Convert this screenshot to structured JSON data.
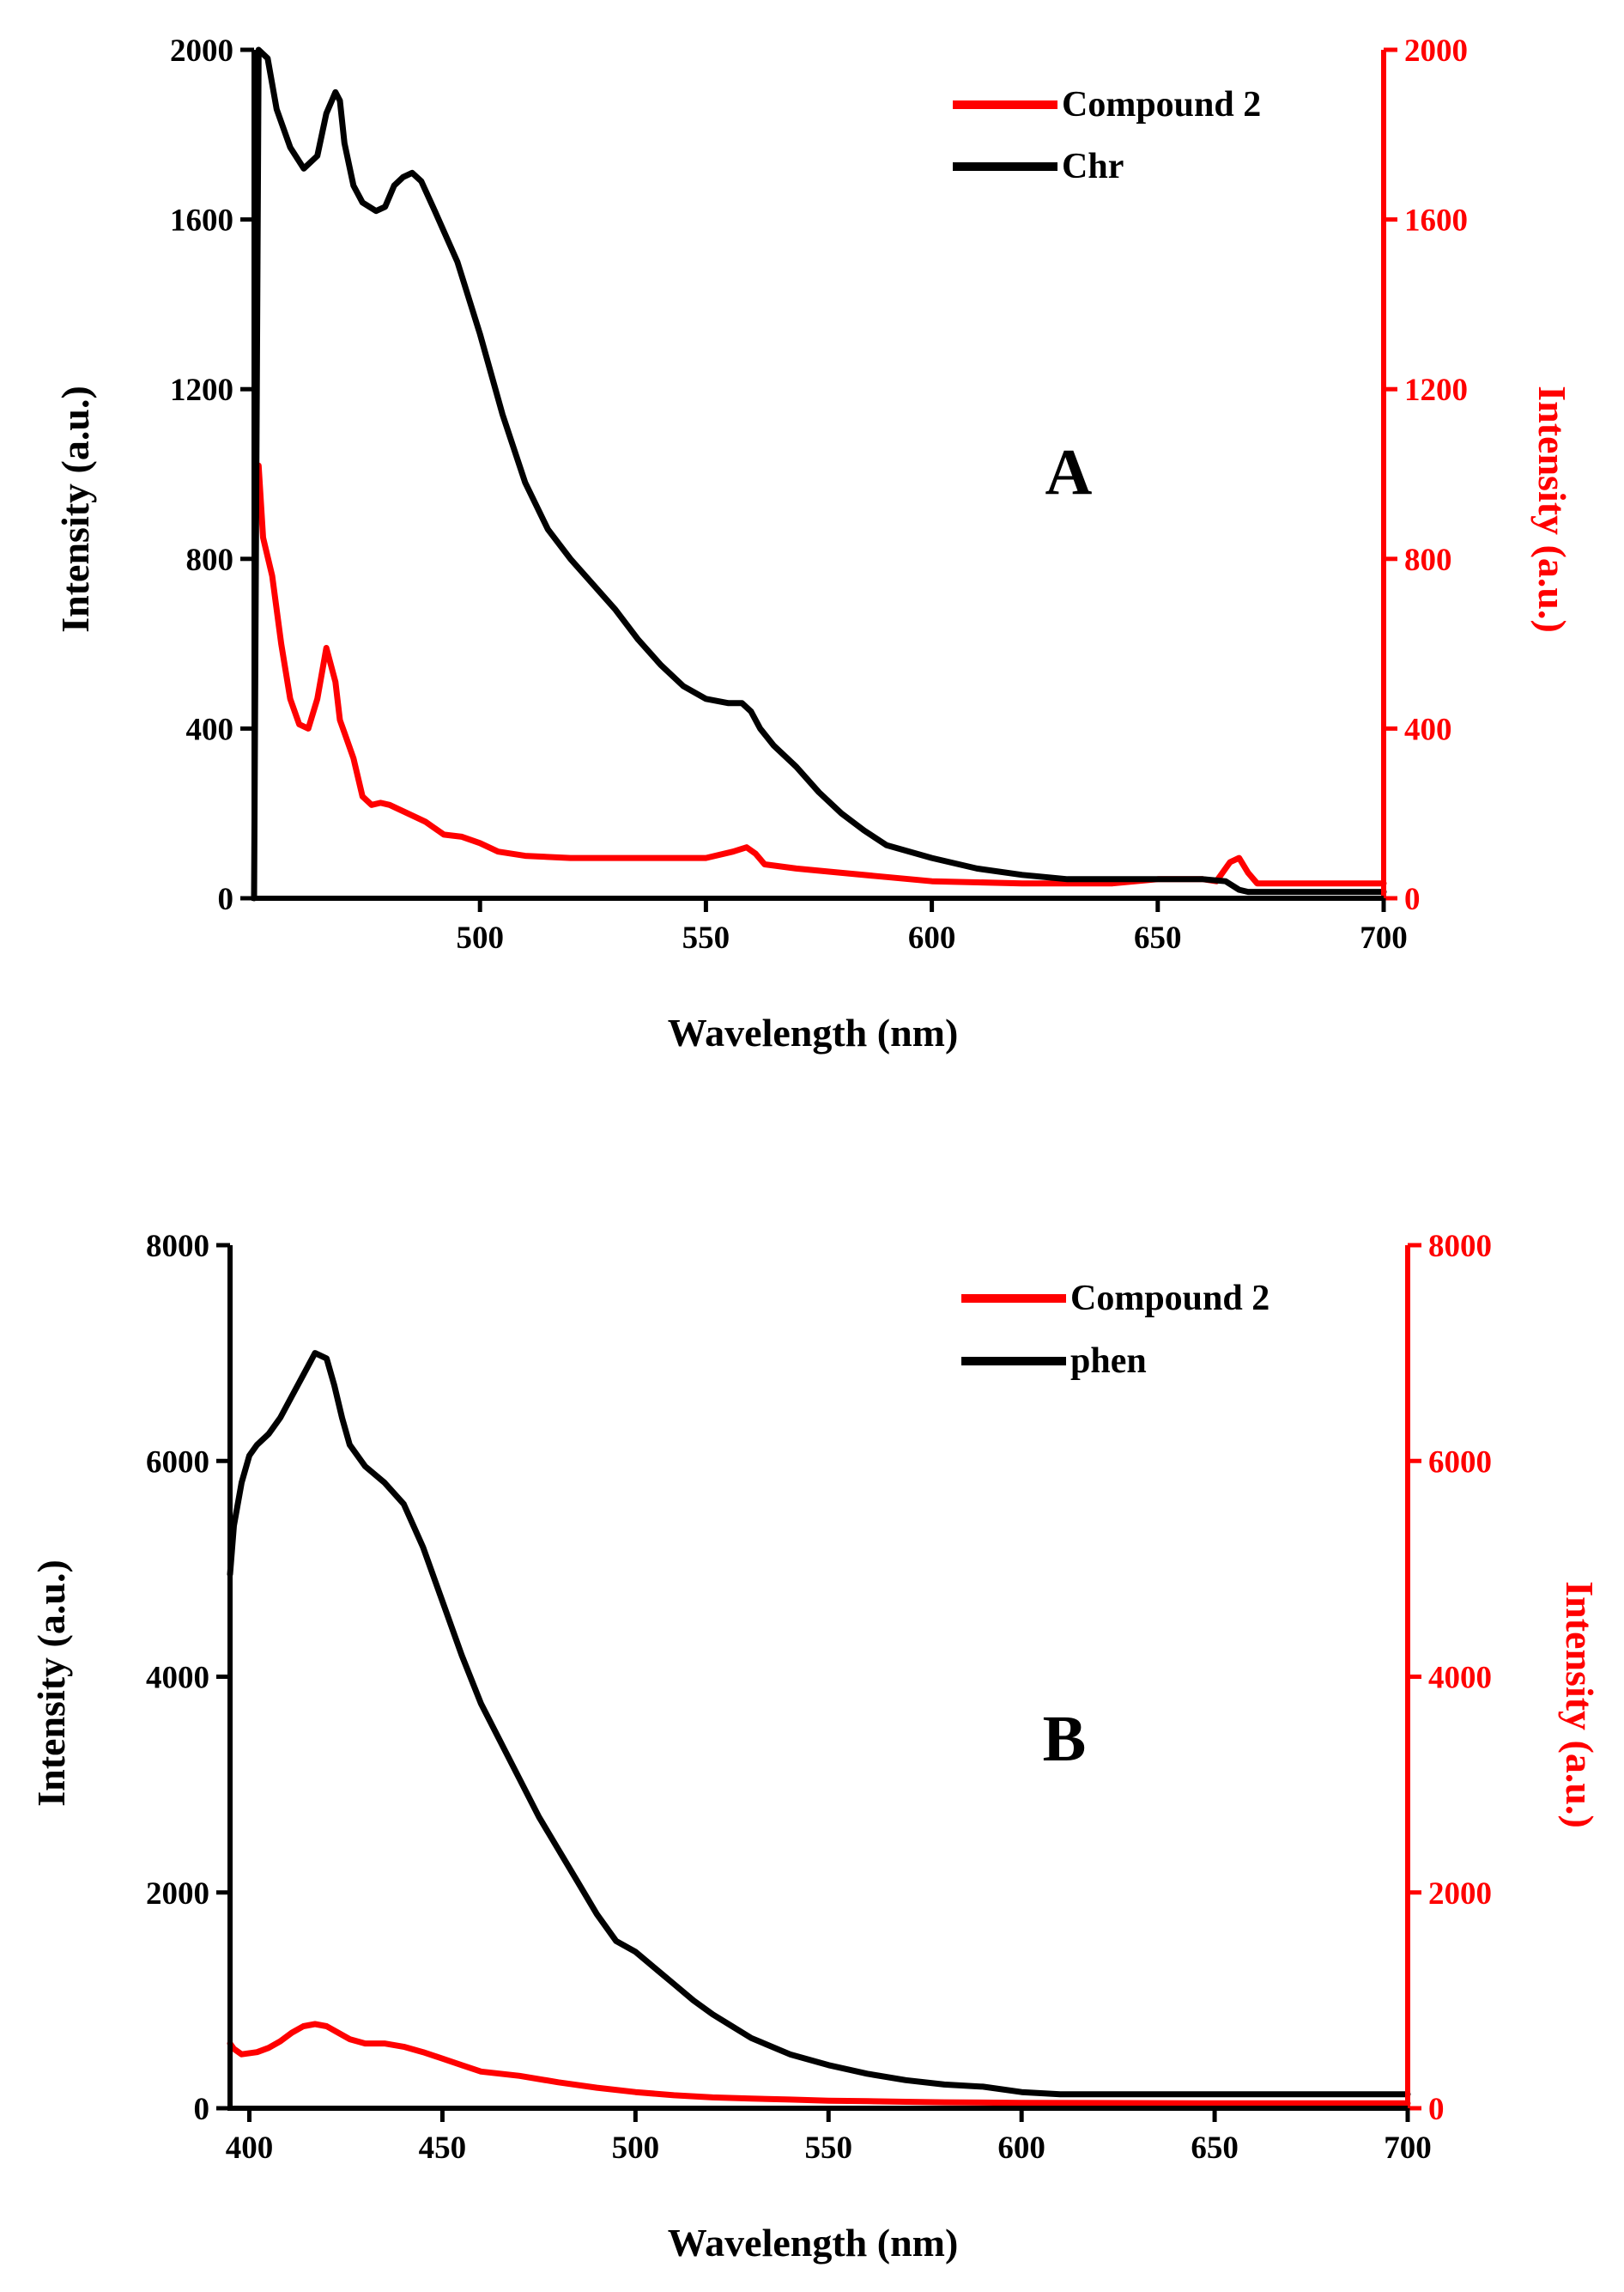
{
  "chart_data": [
    {
      "type": "line",
      "panel_label": "A",
      "xlabel": "Wavelength (nm)",
      "ylabel_left": "Intensity (a.u.)",
      "ylabel_right": "Intensity (a.u.)",
      "xlim": [
        450,
        700
      ],
      "ylim": [
        0,
        2000
      ],
      "xticks": [
        500,
        550,
        600,
        650,
        700
      ],
      "xtick_labels": [
        "500",
        "550",
        "600",
        "650",
        "700"
      ],
      "yticks": [
        0,
        400,
        800,
        1200,
        1600,
        2000
      ],
      "ytick_labels": [
        "0",
        "400",
        "800",
        "1200",
        "1600",
        "2000"
      ],
      "legend_position": "top-right",
      "colors": {
        "axis_left": "#000000",
        "axis_right": "#ff0000"
      },
      "series": [
        {
          "name": "Compound 2",
          "color": "#ff0000",
          "x": [
            451,
            452,
            454,
            456,
            458,
            460,
            462,
            464,
            466,
            468,
            469,
            470,
            472,
            474,
            476,
            478,
            480,
            484,
            488,
            492,
            496,
            500,
            504,
            510,
            520,
            530,
            540,
            550,
            556,
            559,
            561,
            563,
            570,
            580,
            590,
            600,
            620,
            640,
            650,
            660,
            663,
            666,
            668,
            670,
            672,
            680,
            690,
            700
          ],
          "y": [
            1020,
            850,
            760,
            600,
            470,
            410,
            400,
            470,
            590,
            510,
            420,
            390,
            330,
            240,
            220,
            225,
            220,
            200,
            180,
            150,
            145,
            130,
            110,
            100,
            95,
            95,
            95,
            95,
            110,
            120,
            105,
            80,
            70,
            60,
            50,
            40,
            35,
            35,
            45,
            45,
            40,
            85,
            95,
            60,
            35,
            35,
            35,
            35
          ]
        },
        {
          "name": "Chr",
          "color": "#000000",
          "x": [
            450,
            451,
            453,
            455,
            458,
            461,
            464,
            466,
            468,
            469,
            470,
            472,
            474,
            477,
            479,
            481,
            483,
            485,
            487,
            490,
            495,
            500,
            505,
            510,
            515,
            520,
            525,
            530,
            535,
            540,
            545,
            550,
            555,
            558,
            560,
            562,
            565,
            570,
            575,
            580,
            585,
            590,
            600,
            610,
            620,
            630,
            640,
            650,
            660,
            665,
            668,
            670,
            680,
            700
          ],
          "y": [
            0,
            2000,
            1980,
            1860,
            1770,
            1720,
            1750,
            1850,
            1900,
            1880,
            1780,
            1680,
            1640,
            1620,
            1630,
            1680,
            1700,
            1710,
            1690,
            1620,
            1500,
            1330,
            1140,
            980,
            870,
            800,
            740,
            680,
            610,
            550,
            500,
            470,
            460,
            460,
            440,
            400,
            360,
            310,
            250,
            200,
            160,
            125,
            95,
            70,
            55,
            45,
            45,
            45,
            45,
            40,
            20,
            15,
            15,
            15
          ]
        }
      ]
    },
    {
      "type": "line",
      "panel_label": "B",
      "xlabel": "Wavelength (nm)",
      "ylabel_left": "Intensity (a.u.)",
      "ylabel_right": "Intensity (a.u.)",
      "xlim": [
        395,
        700
      ],
      "ylim": [
        0,
        8000
      ],
      "xticks": [
        400,
        450,
        500,
        550,
        600,
        650,
        700
      ],
      "xtick_labels": [
        "400",
        "450",
        "500",
        "550",
        "600",
        "650",
        "700"
      ],
      "yticks": [
        0,
        2000,
        4000,
        6000,
        8000
      ],
      "ytick_labels": [
        "0",
        "2000",
        "4000",
        "6000",
        "8000"
      ],
      "legend_position": "top-right",
      "colors": {
        "axis_left": "#000000",
        "axis_right": "#ff0000"
      },
      "series": [
        {
          "name": "Compound 2",
          "color": "#ff0000",
          "x": [
            395,
            396,
            398,
            402,
            405,
            408,
            411,
            414,
            417,
            420,
            423,
            426,
            430,
            435,
            440,
            445,
            450,
            455,
            460,
            470,
            480,
            490,
            500,
            510,
            520,
            530,
            540,
            550,
            560,
            570,
            580,
            600,
            650,
            700
          ],
          "y": [
            600,
            550,
            500,
            520,
            560,
            620,
            700,
            760,
            780,
            760,
            700,
            640,
            600,
            600,
            570,
            520,
            460,
            400,
            340,
            300,
            240,
            190,
            150,
            120,
            100,
            90,
            80,
            70,
            65,
            60,
            55,
            50,
            45,
            45
          ]
        },
        {
          "name": "phen",
          "color": "#000000",
          "x": [
            395,
            396,
            398,
            400,
            402,
            405,
            408,
            411,
            414,
            417,
            420,
            422,
            424,
            426,
            430,
            435,
            440,
            445,
            450,
            455,
            460,
            465,
            470,
            475,
            480,
            485,
            490,
            495,
            500,
            505,
            510,
            515,
            520,
            525,
            530,
            540,
            550,
            560,
            570,
            580,
            590,
            600,
            610,
            620,
            650,
            700
          ],
          "y": [
            4950,
            5400,
            5800,
            6050,
            6150,
            6250,
            6400,
            6600,
            6800,
            7000,
            6950,
            6700,
            6400,
            6150,
            5950,
            5800,
            5600,
            5200,
            4700,
            4200,
            3750,
            3400,
            3050,
            2700,
            2400,
            2100,
            1800,
            1550,
            1450,
            1300,
            1150,
            1000,
            870,
            760,
            650,
            500,
            400,
            320,
            260,
            220,
            200,
            150,
            130,
            130,
            130,
            130
          ]
        }
      ]
    }
  ]
}
